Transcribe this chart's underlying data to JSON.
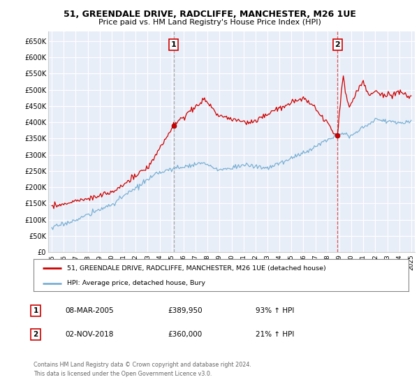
{
  "title": "51, GREENDALE DRIVE, RADCLIFFE, MANCHESTER, M26 1UE",
  "subtitle": "Price paid vs. HM Land Registry's House Price Index (HPI)",
  "yticks": [
    0,
    50000,
    100000,
    150000,
    200000,
    250000,
    300000,
    350000,
    400000,
    450000,
    500000,
    550000,
    600000,
    650000
  ],
  "ytick_labels": [
    "£0",
    "£50K",
    "£100K",
    "£150K",
    "£200K",
    "£250K",
    "£300K",
    "£350K",
    "£400K",
    "£450K",
    "£500K",
    "£550K",
    "£600K",
    "£650K"
  ],
  "xlim_start": 1994.7,
  "xlim_end": 2025.3,
  "ylim_min": 0,
  "ylim_max": 680000,
  "sale1_year": 2005.18,
  "sale1_price": 389950,
  "sale2_year": 2018.84,
  "sale2_price": 360000,
  "property_color": "#cc0000",
  "hpi_color": "#7ab0d4",
  "background_color": "#e8eef8",
  "grid_color": "#ffffff",
  "vline1_color": "#999999",
  "vline2_color": "#dd4444",
  "legend_line1": "51, GREENDALE DRIVE, RADCLIFFE, MANCHESTER, M26 1UE (detached house)",
  "legend_line2": "HPI: Average price, detached house, Bury",
  "annotation1_date": "08-MAR-2005",
  "annotation1_price": "£389,950",
  "annotation1_hpi": "93% ↑ HPI",
  "annotation2_date": "02-NOV-2018",
  "annotation2_price": "£360,000",
  "annotation2_hpi": "21% ↑ HPI",
  "footer": "Contains HM Land Registry data © Crown copyright and database right 2024.\nThis data is licensed under the Open Government Licence v3.0.",
  "xtick_years": [
    1995,
    1996,
    1997,
    1998,
    1999,
    2000,
    2001,
    2002,
    2003,
    2004,
    2005,
    2006,
    2007,
    2008,
    2009,
    2010,
    2011,
    2012,
    2013,
    2014,
    2015,
    2016,
    2017,
    2018,
    2019,
    2020,
    2021,
    2022,
    2023,
    2024,
    2025
  ]
}
